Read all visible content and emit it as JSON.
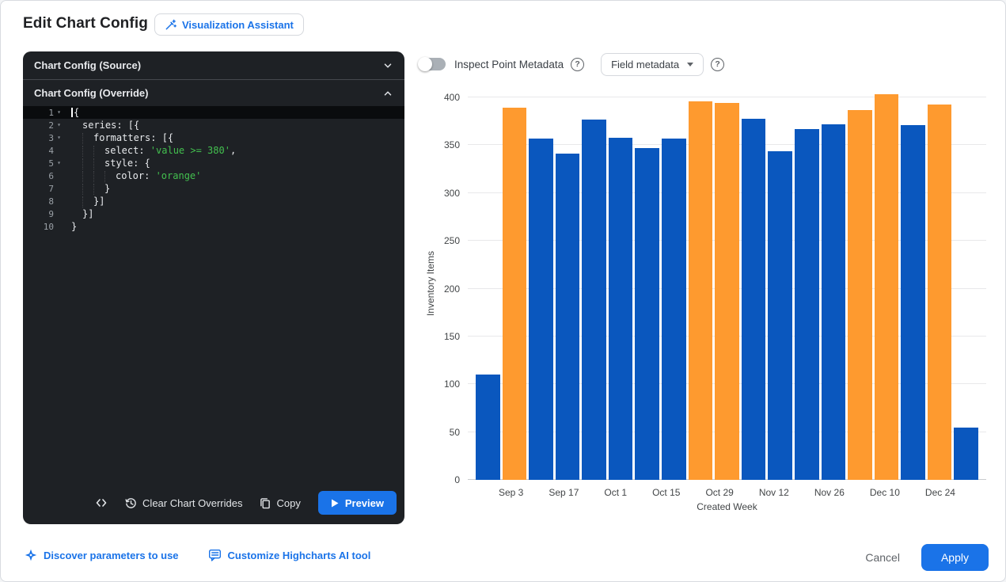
{
  "header": {
    "title": "Edit Chart Config",
    "assistant_button_label": "Visualization Assistant"
  },
  "editor": {
    "source_header": "Chart Config (Source)",
    "override_header": "Chart Config (Override)",
    "lines": [
      {
        "num": 1,
        "fold": true,
        "active": true,
        "cursor": true,
        "indent": 0,
        "segs": [
          {
            "t": "{"
          }
        ]
      },
      {
        "num": 2,
        "fold": true,
        "indent": 1,
        "segs": [
          {
            "t": "series: [{"
          }
        ]
      },
      {
        "num": 3,
        "fold": true,
        "indent": 2,
        "segs": [
          {
            "t": "formatters: [{"
          }
        ]
      },
      {
        "num": 4,
        "indent": 3,
        "segs": [
          {
            "t": "select: "
          },
          {
            "t": "'value >= 380'",
            "c": "str"
          },
          {
            "t": ","
          }
        ]
      },
      {
        "num": 5,
        "fold": true,
        "indent": 3,
        "segs": [
          {
            "t": "style: {"
          }
        ]
      },
      {
        "num": 6,
        "indent": 4,
        "segs": [
          {
            "t": "color: "
          },
          {
            "t": "'orange'",
            "c": "str"
          }
        ]
      },
      {
        "num": 7,
        "indent": 3,
        "segs": [
          {
            "t": "}"
          }
        ]
      },
      {
        "num": 8,
        "indent": 2,
        "segs": [
          {
            "t": "}]"
          }
        ]
      },
      {
        "num": 9,
        "indent": 1,
        "segs": [
          {
            "t": "}]"
          }
        ]
      },
      {
        "num": 10,
        "indent": 0,
        "segs": [
          {
            "t": "}"
          }
        ]
      }
    ],
    "footer": {
      "clear_label": "Clear Chart Overrides",
      "copy_label": "Copy",
      "preview_label": "Preview"
    }
  },
  "chart_toolbar": {
    "inspect_toggle_label": "Inspect Point Metadata",
    "inspect_toggle_state": "off",
    "field_metadata_label": "Field metadata",
    "help_glyph": "?"
  },
  "chart_data": {
    "type": "bar",
    "title": "",
    "ylabel": "Inventory Items",
    "xlabel": "Created Week",
    "ylim": [
      0,
      400
    ],
    "yticks": [
      0,
      50,
      100,
      150,
      200,
      250,
      300,
      350,
      400
    ],
    "x_tick_labels": [
      "Sep 3",
      "Sep 17",
      "Oct 1",
      "Oct 15",
      "Oct 29",
      "Nov 12",
      "Nov 26",
      "Dec 10",
      "Dec 24"
    ],
    "x_tick_label_slots": [
      1,
      3,
      5,
      7,
      9,
      11,
      13,
      15,
      17
    ],
    "series": [
      {
        "name": "Inventory Items",
        "values": [
          110,
          389,
          357,
          341,
          377,
          358,
          347,
          357,
          396,
          394,
          378,
          344,
          367,
          372,
          387,
          403,
          371,
          393,
          55
        ]
      }
    ],
    "highlight_rule": {
      "select": "value >= 380",
      "threshold": 380
    },
    "colors": {
      "bar_default": "#0a57be",
      "bar_highlight": "#fe9a2f",
      "grid": "#e8e8ea",
      "axis_line": "#c9cbce",
      "tick_text": "#424547"
    },
    "grid": true,
    "legend": false
  },
  "footer": {
    "discover_link_label": "Discover parameters to use",
    "customize_link_label": "Customize Highcharts AI tool",
    "cancel_label": "Cancel",
    "apply_label": "Apply"
  },
  "colors": {
    "accent": "#1a73e8"
  }
}
